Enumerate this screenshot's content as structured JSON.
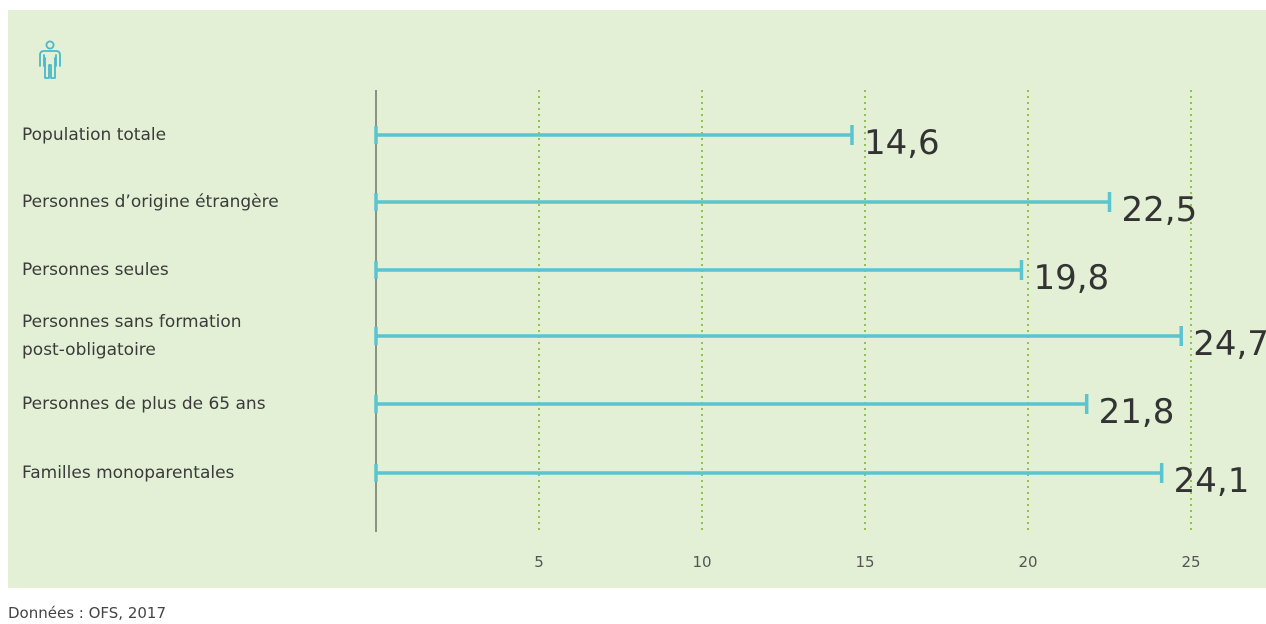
{
  "colors": {
    "background": "#e3f0d5",
    "bar": "#5bc4cf",
    "icon": "#4ab8c8",
    "grid": "#8fc34a",
    "axis": "#333333"
  },
  "icon": "person-icon",
  "chart_data": {
    "type": "bar",
    "orientation": "horizontal",
    "categories": [
      "Population totale",
      "Personnes d’origine étrangère",
      "Personnes seules",
      "Personnes sans formation\npost-obligatoire",
      "Personnes de plus de 65 ans",
      "Familles monoparentales"
    ],
    "values": [
      14.6,
      22.5,
      19.8,
      24.7,
      21.8,
      24.1
    ],
    "value_labels": [
      "14,6",
      "22,5",
      "19,8",
      "24,7",
      "21,8",
      "24,1"
    ],
    "xticks": [
      5,
      10,
      15,
      20,
      25
    ],
    "xtick_labels": [
      "5",
      "10",
      "15",
      "20",
      "25"
    ],
    "xlim": [
      0,
      25
    ],
    "grid": "vertical dotted",
    "title": "",
    "xlabel": "",
    "ylabel": ""
  },
  "source": "Données : OFS, 2017"
}
